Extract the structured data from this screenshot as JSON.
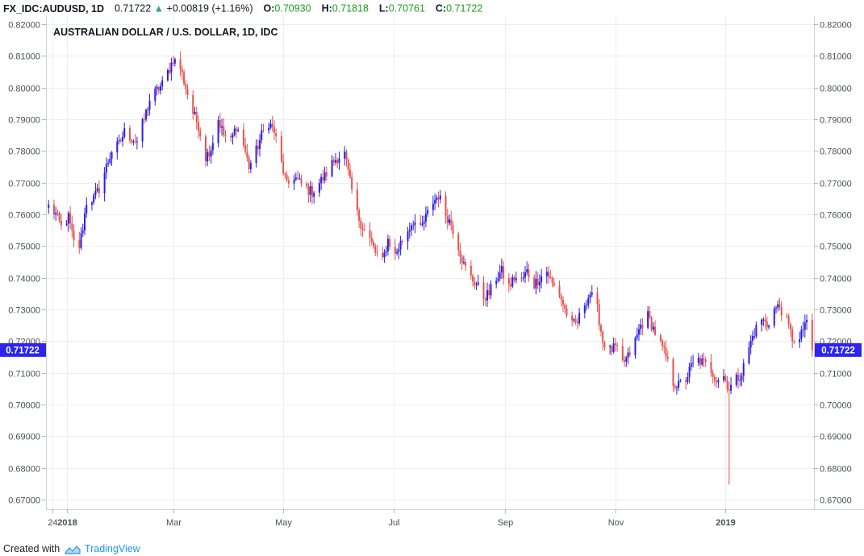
{
  "header": {
    "symbol": "FX_IDC:AUDUSD, 1D",
    "last": "0.71722",
    "change": "+0.00819 (+1.16%)",
    "open_label": "O:",
    "open": "0.70930",
    "high_label": "H:",
    "high": "0.71818",
    "low_label": "L:",
    "low": "0.70761",
    "close_label": "C:",
    "close": "0.71722"
  },
  "footer": {
    "created_with": "Created with",
    "brand": "TradingView"
  },
  "colors": {
    "up": "#2c1ce6",
    "down": "#e5524d",
    "grid": "#ebeef2",
    "price_label_bg": "#2e24f0",
    "header_green": "#1b9e1b"
  },
  "chart_data": {
    "type": "candlestick",
    "title": "AUSTRALIAN DOLLAR / U.S. DOLLAR, 1D, IDC",
    "ylim": [
      0.667,
      0.8225
    ],
    "y_ticks": [
      "0.82000",
      "0.81000",
      "0.80000",
      "0.79000",
      "0.78000",
      "0.77000",
      "0.76000",
      "0.75000",
      "0.74000",
      "0.73000",
      "0.72000",
      "0.71000",
      "0.70000",
      "0.69000",
      "0.68000",
      "0.67000"
    ],
    "y_tick_values": [
      0.82,
      0.81,
      0.8,
      0.79,
      0.78,
      0.77,
      0.76,
      0.75,
      0.74,
      0.73,
      0.72,
      0.71,
      0.7,
      0.69,
      0.68,
      0.67
    ],
    "x_range": [
      "2017-12-21",
      "2019-02-19"
    ],
    "x_ticks": [
      {
        "label": "24",
        "date": "2017-12-24",
        "bold": false
      },
      {
        "label": "2018",
        "date": "2018-01-01",
        "bold": true
      },
      {
        "label": "Mar",
        "date": "2018-03-01",
        "bold": false
      },
      {
        "label": "May",
        "date": "2018-05-01",
        "bold": false
      },
      {
        "label": "Jul",
        "date": "2018-07-01",
        "bold": false
      },
      {
        "label": "Sep",
        "date": "2018-09-01",
        "bold": false
      },
      {
        "label": "Nov",
        "date": "2018-11-01",
        "bold": false
      },
      {
        "label": "2019",
        "date": "2019-01-01",
        "bold": true
      }
    ],
    "last_price_label": "0.71722",
    "last_price": 0.71722,
    "grid": true,
    "close_path": [
      [
        "2017-12-22",
        0.7625
      ],
      [
        "2017-12-26",
        0.76
      ],
      [
        "2017-12-29",
        0.756
      ],
      [
        "2018-01-02",
        0.759
      ],
      [
        "2018-01-05",
        0.751
      ],
      [
        "2018-01-08",
        0.75
      ],
      [
        "2018-01-10",
        0.756
      ],
      [
        "2018-01-12",
        0.764
      ],
      [
        "2018-01-16",
        0.765
      ],
      [
        "2018-01-19",
        0.768
      ],
      [
        "2018-01-23",
        0.775
      ],
      [
        "2018-01-26",
        0.78
      ],
      [
        "2018-01-30",
        0.782
      ],
      [
        "2018-02-02",
        0.786
      ],
      [
        "2018-02-06",
        0.784
      ],
      [
        "2018-02-09",
        0.783
      ],
      [
        "2018-02-13",
        0.79
      ],
      [
        "2018-02-16",
        0.796
      ],
      [
        "2018-02-20",
        0.799
      ],
      [
        "2018-02-23",
        0.801
      ],
      [
        "2018-02-27",
        0.806
      ],
      [
        "2018-03-01",
        0.809
      ],
      [
        "2018-03-05",
        0.806
      ],
      [
        "2018-03-08",
        0.8
      ],
      [
        "2018-03-12",
        0.792
      ],
      [
        "2018-03-15",
        0.788
      ],
      [
        "2018-03-19",
        0.778
      ],
      [
        "2018-03-22",
        0.781
      ],
      [
        "2018-03-26",
        0.79
      ],
      [
        "2018-03-29",
        0.785
      ],
      [
        "2018-04-02",
        0.783
      ],
      [
        "2018-04-05",
        0.788
      ],
      [
        "2018-04-09",
        0.782
      ],
      [
        "2018-04-12",
        0.775
      ],
      [
        "2018-04-16",
        0.78
      ],
      [
        "2018-04-19",
        0.785
      ],
      [
        "2018-04-23",
        0.789
      ],
      [
        "2018-04-26",
        0.786
      ],
      [
        "2018-04-30",
        0.776
      ],
      [
        "2018-05-03",
        0.769
      ],
      [
        "2018-05-07",
        0.772
      ],
      [
        "2018-05-10",
        0.77
      ],
      [
        "2018-05-14",
        0.768
      ],
      [
        "2018-05-17",
        0.767
      ],
      [
        "2018-05-21",
        0.77
      ],
      [
        "2018-05-24",
        0.772
      ],
      [
        "2018-05-28",
        0.776
      ],
      [
        "2018-05-31",
        0.778
      ],
      [
        "2018-06-04",
        0.779
      ],
      [
        "2018-06-07",
        0.77
      ],
      [
        "2018-06-11",
        0.76
      ],
      [
        "2018-06-14",
        0.756
      ],
      [
        "2018-06-18",
        0.752
      ],
      [
        "2018-06-21",
        0.748
      ],
      [
        "2018-06-25",
        0.745
      ],
      [
        "2018-06-28",
        0.752
      ],
      [
        "2018-07-02",
        0.747
      ],
      [
        "2018-07-05",
        0.751
      ],
      [
        "2018-07-09",
        0.755
      ],
      [
        "2018-07-12",
        0.758
      ],
      [
        "2018-07-16",
        0.755
      ],
      [
        "2018-07-19",
        0.759
      ],
      [
        "2018-07-23",
        0.764
      ],
      [
        "2018-07-26",
        0.766
      ],
      [
        "2018-07-30",
        0.76
      ],
      [
        "2018-08-02",
        0.757
      ],
      [
        "2018-08-06",
        0.75
      ],
      [
        "2018-08-09",
        0.744
      ],
      [
        "2018-08-13",
        0.74
      ],
      [
        "2018-08-16",
        0.738
      ],
      [
        "2018-08-20",
        0.734
      ],
      [
        "2018-08-23",
        0.735
      ],
      [
        "2018-08-27",
        0.74
      ],
      [
        "2018-08-30",
        0.742
      ],
      [
        "2018-09-03",
        0.737
      ],
      [
        "2018-09-06",
        0.74
      ],
      [
        "2018-09-10",
        0.739
      ],
      [
        "2018-09-13",
        0.742
      ],
      [
        "2018-09-17",
        0.738
      ],
      [
        "2018-09-20",
        0.74
      ],
      [
        "2018-09-24",
        0.742
      ],
      [
        "2018-09-27",
        0.738
      ],
      [
        "2018-10-01",
        0.735
      ],
      [
        "2018-10-04",
        0.73
      ],
      [
        "2018-10-08",
        0.725
      ],
      [
        "2018-10-11",
        0.726
      ],
      [
        "2018-10-15",
        0.732
      ],
      [
        "2018-10-18",
        0.735
      ],
      [
        "2018-10-22",
        0.73
      ],
      [
        "2018-10-25",
        0.72
      ],
      [
        "2018-10-29",
        0.717
      ],
      [
        "2018-11-01",
        0.718
      ],
      [
        "2018-11-05",
        0.713
      ],
      [
        "2018-11-08",
        0.715
      ],
      [
        "2018-11-12",
        0.72
      ],
      [
        "2018-11-15",
        0.725
      ],
      [
        "2018-11-19",
        0.728
      ],
      [
        "2018-11-22",
        0.724
      ],
      [
        "2018-11-26",
        0.719
      ],
      [
        "2018-11-29",
        0.715
      ],
      [
        "2018-12-03",
        0.707
      ],
      [
        "2018-12-06",
        0.706
      ],
      [
        "2018-12-10",
        0.708
      ],
      [
        "2018-12-13",
        0.712
      ],
      [
        "2018-12-17",
        0.714
      ],
      [
        "2018-12-20",
        0.713
      ],
      [
        "2018-12-24",
        0.711
      ],
      [
        "2018-12-27",
        0.708
      ],
      [
        "2018-12-31",
        0.709
      ],
      [
        "2019-01-03",
        0.705
      ],
      [
        "2019-01-07",
        0.708
      ],
      [
        "2019-01-10",
        0.71
      ],
      [
        "2019-01-14",
        0.718
      ],
      [
        "2019-01-17",
        0.723
      ],
      [
        "2019-01-21",
        0.727
      ],
      [
        "2019-01-24",
        0.725
      ],
      [
        "2019-01-28",
        0.73
      ],
      [
        "2019-01-31",
        0.731
      ],
      [
        "2019-02-04",
        0.726
      ],
      [
        "2019-02-07",
        0.721
      ],
      [
        "2019-02-11",
        0.72
      ],
      [
        "2019-02-14",
        0.726
      ],
      [
        "2019-02-18",
        0.722
      ]
    ],
    "wick_extremes": [
      {
        "date": "2019-01-03",
        "low": 0.6748
      }
    ]
  }
}
